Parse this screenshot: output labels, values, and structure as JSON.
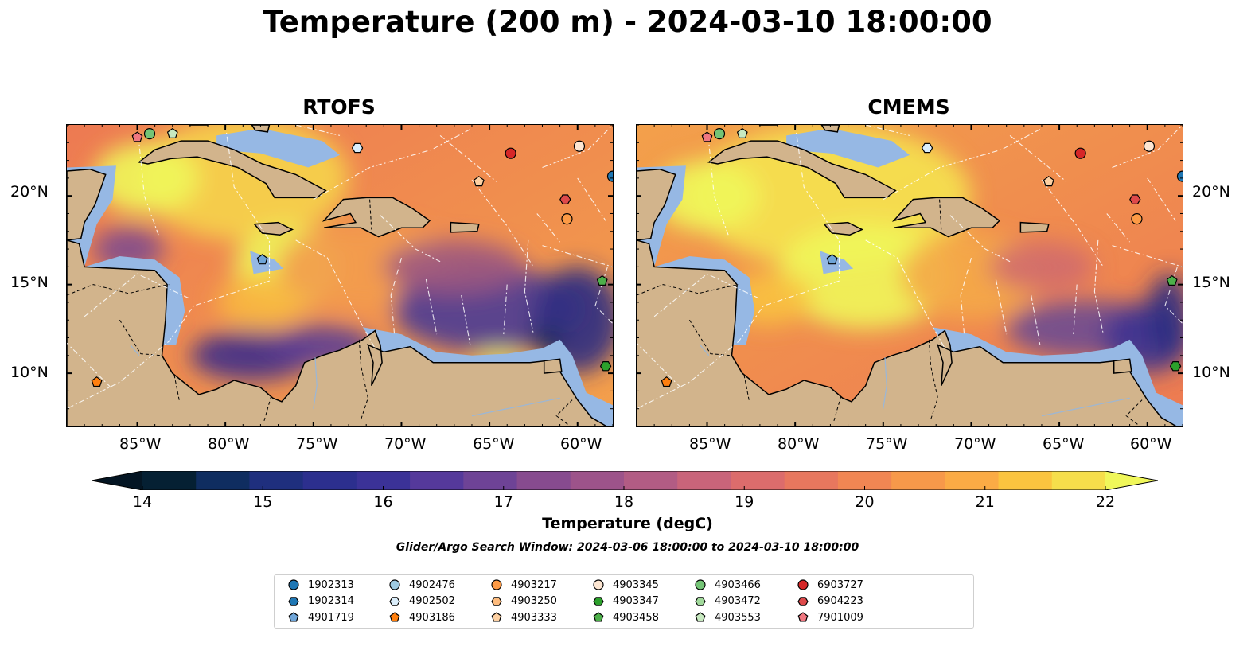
{
  "title": "Temperature (200 m) - 2024-03-10 18:00:00",
  "panels": [
    {
      "title": "RTOFS"
    },
    {
      "title": "CMEMS"
    }
  ],
  "axes": {
    "x_ticks": [
      "85°W",
      "80°W",
      "75°W",
      "70°W",
      "65°W",
      "60°W"
    ],
    "y_ticks": [
      "20°N",
      "15°N",
      "10°N"
    ],
    "lon_range": [
      -89,
      -58
    ],
    "lat_range": [
      7,
      24
    ]
  },
  "colorbar": {
    "label": "Temperature (degC)",
    "ticks": [
      "14",
      "15",
      "16",
      "17",
      "18",
      "19",
      "20",
      "21",
      "22"
    ],
    "range": [
      14,
      22
    ],
    "extend": "both"
  },
  "search_window": "Glider/Argo Search Window: 2024-03-06 18:00:00 to 2024-03-10 18:00:00",
  "legend": {
    "items": [
      {
        "id": "1902313",
        "marker": "circle",
        "color": "#1f77b4"
      },
      {
        "id": "1902314",
        "marker": "hexagon",
        "color": "#1f77b4"
      },
      {
        "id": "4901719",
        "marker": "pentagon",
        "color": "#6fa5d8"
      },
      {
        "id": "4902476",
        "marker": "circle",
        "color": "#9ecae1"
      },
      {
        "id": "4902502",
        "marker": "hexagon",
        "color": "#dbeefb"
      },
      {
        "id": "4903186",
        "marker": "pentagon",
        "color": "#ff7f0e"
      },
      {
        "id": "4903217",
        "marker": "circle",
        "color": "#fd9a45"
      },
      {
        "id": "4903250",
        "marker": "hexagon",
        "color": "#fdbb7d"
      },
      {
        "id": "4903333",
        "marker": "pentagon",
        "color": "#fdd0a2"
      },
      {
        "id": "4903345",
        "marker": "circle",
        "color": "#fde6d2"
      },
      {
        "id": "4903347",
        "marker": "hexagon",
        "color": "#2ca02c"
      },
      {
        "id": "4903458",
        "marker": "pentagon",
        "color": "#4daf4a"
      },
      {
        "id": "4903466",
        "marker": "circle",
        "color": "#74c476"
      },
      {
        "id": "4903472",
        "marker": "hexagon",
        "color": "#a1d99b"
      },
      {
        "id": "4903553",
        "marker": "pentagon",
        "color": "#c7e9c0"
      },
      {
        "id": "6903727",
        "marker": "circle",
        "color": "#d62728"
      },
      {
        "id": "6904223",
        "marker": "hexagon",
        "color": "#de4a4b"
      },
      {
        "id": "7901009",
        "marker": "pentagon",
        "color": "#f07881"
      }
    ]
  },
  "floats": [
    {
      "id": "7901009",
      "lon": -85.0,
      "lat": 23.3
    },
    {
      "id": "4903466",
      "lon": -84.3,
      "lat": 23.5
    },
    {
      "id": "4903553",
      "lon": -83.0,
      "lat": 23.5
    },
    {
      "id": "4902502",
      "lon": -72.5,
      "lat": 22.7
    },
    {
      "id": "6903727",
      "lon": -63.8,
      "lat": 22.4
    },
    {
      "id": "4903345",
      "lon": -59.9,
      "lat": 22.8
    },
    {
      "id": "1902313",
      "lon": -58.0,
      "lat": 21.1
    },
    {
      "id": "4903333",
      "lon": -65.6,
      "lat": 20.8
    },
    {
      "id": "6904223",
      "lon": -60.7,
      "lat": 19.8
    },
    {
      "id": "4903217",
      "lon": -60.6,
      "lat": 18.7
    },
    {
      "id": "4901719",
      "lon": -77.9,
      "lat": 16.4
    },
    {
      "id": "4903458",
      "lon": -58.6,
      "lat": 15.2
    },
    {
      "id": "4903347",
      "lon": -58.4,
      "lat": 10.4
    },
    {
      "id": "4903186",
      "lon": -87.3,
      "lat": 9.5
    }
  ]
}
